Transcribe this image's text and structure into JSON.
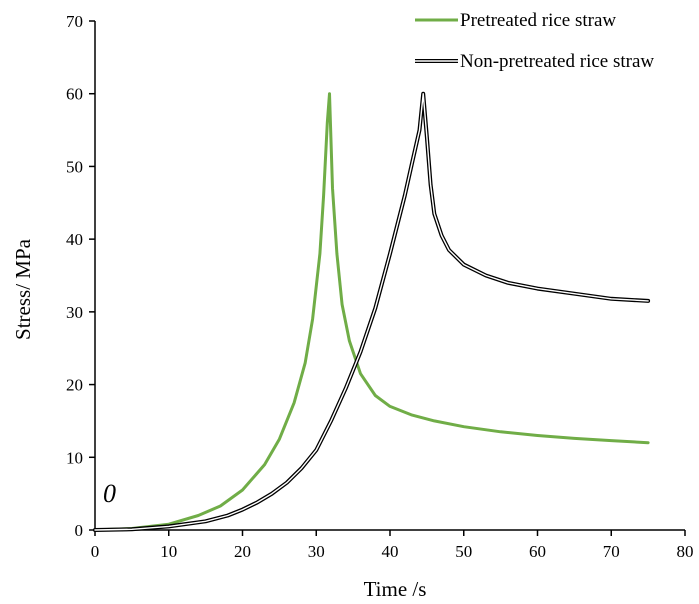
{
  "chart_data": {
    "type": "line",
    "title": "",
    "xlabel": "Time /s",
    "ylabel": "Stress/ MPa",
    "xlim": [
      0,
      80
    ],
    "ylim": [
      0,
      70
    ],
    "xticks": [
      0,
      10,
      20,
      30,
      40,
      50,
      60,
      70,
      80
    ],
    "yticks": [
      0,
      10,
      20,
      30,
      40,
      50,
      60,
      70
    ],
    "xtick_labels": [
      "0",
      "10",
      "20",
      "30",
      "40",
      "50",
      "60",
      "70",
      "80"
    ],
    "ytick_labels": [
      "0",
      "10",
      "20",
      "30",
      "40",
      "50",
      "60",
      "70"
    ],
    "grid": false,
    "legend_position": "top-right",
    "annotation": "0",
    "series": [
      {
        "name": "Pretreated rice straw",
        "color": "#70ad47",
        "style": "solid",
        "x": [
          0,
          5,
          10,
          14,
          17,
          20,
          23,
          25,
          27,
          28.5,
          29.5,
          30.5,
          31,
          31.5,
          31.8,
          32.2,
          32.8,
          33.5,
          34.5,
          36,
          38,
          40,
          43,
          46,
          50,
          55,
          60,
          65,
          70,
          75
        ],
        "y": [
          0,
          0.2,
          0.8,
          2.0,
          3.3,
          5.5,
          9.0,
          12.5,
          17.5,
          23.0,
          29.0,
          38.0,
          46.0,
          56.0,
          60.0,
          47.0,
          38.0,
          31.0,
          26.0,
          21.5,
          18.5,
          17.0,
          15.8,
          15.0,
          14.2,
          13.5,
          13.0,
          12.6,
          12.3,
          12.0
        ]
      },
      {
        "name": "Non-pretreated rice straw",
        "color": "#000000",
        "style": "double",
        "x": [
          0,
          5,
          10,
          15,
          18,
          20,
          22,
          24,
          26,
          28,
          30,
          32,
          34,
          36,
          38,
          40,
          42,
          43,
          44,
          44.5,
          45,
          45.5,
          46,
          47,
          48,
          50,
          53,
          56,
          60,
          65,
          70,
          75
        ],
        "y": [
          0,
          0.1,
          0.5,
          1.2,
          2.0,
          2.8,
          3.8,
          5.0,
          6.5,
          8.5,
          11.0,
          15.0,
          19.5,
          24.5,
          30.5,
          38.0,
          46.0,
          50.5,
          55.0,
          60.0,
          54.0,
          47.5,
          43.5,
          40.5,
          38.5,
          36.5,
          35.0,
          34.0,
          33.2,
          32.5,
          31.8,
          31.5
        ]
      }
    ]
  }
}
